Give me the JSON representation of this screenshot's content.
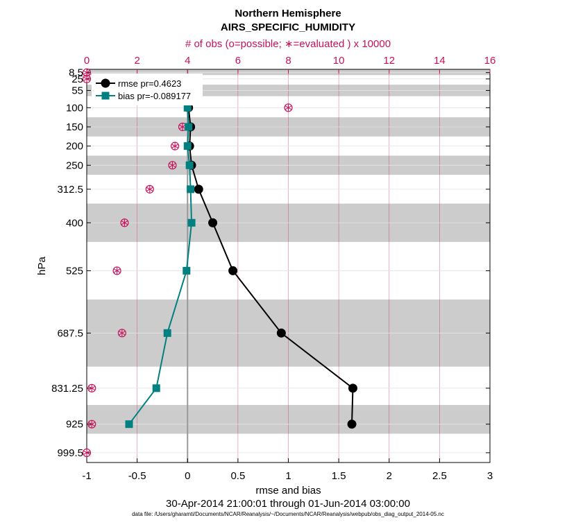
{
  "chart_data": {
    "type": "line",
    "title": "Northern Hemisphere",
    "subtitle": "AIRS_SPECIFIC_HUMIDITY",
    "top_axis_label": "# of obs (o=possible; ∗=evaluated ) x 10000",
    "xlabel": "rmse and bias",
    "ylabel": "hPa",
    "date_range": "30-Apr-2014 21:00:01 through 01-Jun-2014 03:00:00",
    "footnote": "data file: /Users/gharamti/Documents/NCAR/Reanalysis/~/Documents/NCAR/Reanalysis/webpub/obs_diag_output_2014-05.nc",
    "xlim": [
      -1,
      3
    ],
    "x_ticks": [
      "-1",
      "-0.5",
      "0",
      "0.5",
      "1",
      "1.5",
      "2",
      "2.5",
      "3"
    ],
    "top_xlim": [
      0,
      16
    ],
    "top_ticks": [
      "0",
      "2",
      "4",
      "6",
      "8",
      "10",
      "12",
      "14",
      "16"
    ],
    "ylim": [
      1025,
      0
    ],
    "levels": [
      8.5,
      25,
      55,
      100,
      150,
      200,
      250,
      312.5,
      400,
      525,
      687.5,
      831.25,
      925,
      999.5
    ],
    "level_labels": [
      "8.5",
      "25",
      "55",
      "100",
      "150",
      "200",
      "250",
      "312.5",
      "400",
      "525",
      "687.5",
      "831.25",
      "925",
      "999.5"
    ],
    "shaded_bands": [
      [
        0,
        15
      ],
      [
        40,
        70
      ],
      [
        125,
        175
      ],
      [
        225,
        275
      ],
      [
        350,
        450
      ],
      [
        600,
        775
      ],
      [
        875,
        950
      ]
    ],
    "series": [
      {
        "name": "rmse pr=0.4623",
        "color": "#000000",
        "marker": "circle",
        "levels": [
          55,
          100,
          150,
          200,
          250,
          312.5,
          400,
          525,
          687.5,
          831.25,
          925
        ],
        "values": [
          0.0,
          0.01,
          0.03,
          0.02,
          0.04,
          0.11,
          0.25,
          0.45,
          0.93,
          1.64,
          1.63
        ]
      },
      {
        "name": "bias pr=-0.089177",
        "color": "#008080",
        "marker": "square",
        "levels": [
          55,
          100,
          150,
          200,
          250,
          312.5,
          400,
          525,
          687.5,
          831.25,
          925
        ],
        "values": [
          0.0,
          0.0,
          0.01,
          0.0,
          0.02,
          0.03,
          0.04,
          -0.01,
          -0.2,
          -0.31,
          -0.58
        ]
      }
    ],
    "obs_counts": {
      "color": "#c8105a",
      "levels": [
        8.5,
        25,
        55,
        100,
        150,
        200,
        250,
        312.5,
        400,
        525,
        687.5,
        831.25,
        925,
        999.5
      ],
      "possible": [
        0.0,
        0.0,
        4.2,
        8.0,
        3.8,
        3.5,
        3.4,
        2.5,
        1.5,
        1.2,
        1.4,
        0.2,
        0.2,
        0.0
      ],
      "evaluated": [
        0.0,
        0.0,
        4.2,
        8.0,
        3.8,
        3.5,
        3.4,
        2.5,
        1.5,
        1.2,
        1.4,
        0.2,
        0.2,
        0.0
      ]
    },
    "legend_position": "top-left"
  }
}
